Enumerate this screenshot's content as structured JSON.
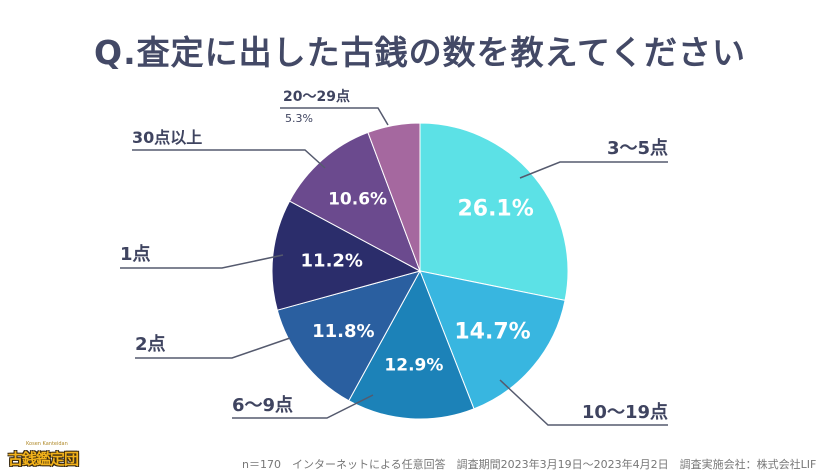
{
  "title": "Q.査定に出した古銭の数を教えてください",
  "chart_data": {
    "type": "pie",
    "start_angle_deg": 0,
    "direction": "clockwise",
    "slices": [
      {
        "label": "3〜5点",
        "value": 26.1,
        "value_label": "26.1%",
        "color": "#5ce1e6"
      },
      {
        "label": "10〜19点",
        "value": 14.7,
        "value_label": "14.7%",
        "color": "#38b6e0"
      },
      {
        "label": "6〜9点",
        "value": 12.9,
        "value_label": "12.9%",
        "color": "#1c82b8"
      },
      {
        "label": "2点",
        "value": 11.8,
        "value_label": "11.8%",
        "color": "#2a5fa0"
      },
      {
        "label": "1点",
        "value": 11.2,
        "value_label": "11.2%",
        "color": "#2b2d6b"
      },
      {
        "label": "30点以上",
        "value": 10.6,
        "value_label": "10.6%",
        "color": "#6b4a8e"
      },
      {
        "label": "20〜29点",
        "value": 5.3,
        "value_label": "5.3%",
        "color": "#a5689f"
      }
    ]
  },
  "footnote": "n＝170　インターネットによる任意回答　調査期間2023年3月19日〜2023年4月2日　調査実施会社：株式会社LIF",
  "logo": {
    "text": "古銭鑑定団",
    "subtext": "Kosen Kanteidan"
  }
}
